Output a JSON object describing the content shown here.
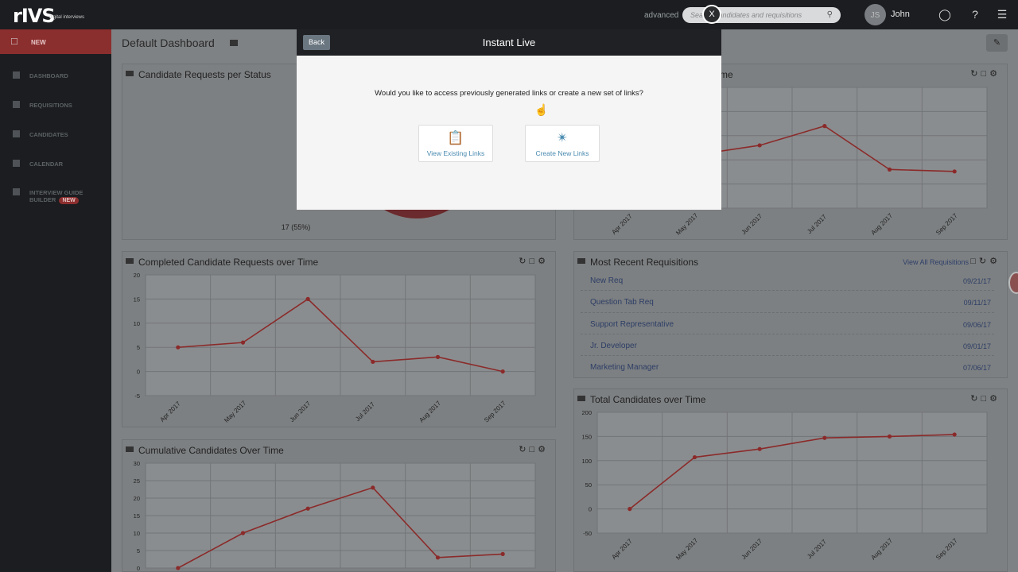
{
  "app": {
    "logo": "rIVS",
    "logo_sub": "digital interviews",
    "advanced_label": "advanced",
    "search_placeholder": "Search candidates and requisitions",
    "search_icon": "search-icon",
    "user_initials": "JS",
    "user_name": "John"
  },
  "sidebar": {
    "new_label": "NEW",
    "items": [
      {
        "label": "DASHBOARD",
        "icon": "bar-chart-icon"
      },
      {
        "label": "REQUISITIONS",
        "icon": "file-icon"
      },
      {
        "label": "CANDIDATES",
        "icon": "users-icon"
      },
      {
        "label": "CALENDAR",
        "icon": "calendar-icon"
      },
      {
        "label": "INTERVIEW GUIDE",
        "label2": "BUILDER",
        "badge": "NEW",
        "icon": "guide-icon"
      }
    ]
  },
  "dashboard": {
    "title": "Default Dashboard",
    "panels": {
      "status": {
        "title": "Candidate Requests per Status",
        "pie_label": "17 (55%)"
      },
      "right_top": {
        "title": "me"
      },
      "completed": {
        "title": "Completed Candidate Requests over Time"
      },
      "recent": {
        "title": "Most Recent Requisitions",
        "link": "View All Requisitions"
      },
      "cumulative": {
        "title": "Cumulative Candidates Over Time"
      },
      "total": {
        "title": "Total Candidates over Time"
      }
    },
    "requisitions": [
      {
        "name": "New Req",
        "date": "09/21/17"
      },
      {
        "name": "Question Tab Req",
        "date": "09/11/17"
      },
      {
        "name": "Support Representative",
        "date": "09/06/17"
      },
      {
        "name": "Jr. Developer",
        "date": "09/01/17"
      },
      {
        "name": "Marketing Manager",
        "date": "07/06/17"
      }
    ]
  },
  "modal": {
    "back_label": "Back",
    "title": "Instant Live",
    "question": "Would you like to access previously generated links or create a new set of links?",
    "options": [
      {
        "label": "View Existing Links",
        "icon": "clipboard-icon"
      },
      {
        "label": "Create New Links",
        "icon": "badge-check-icon"
      }
    ],
    "close_label": "X"
  },
  "chart_data": [
    {
      "id": "completed",
      "type": "line",
      "title": "Completed Candidate Requests over Time",
      "categories": [
        "Apr 2017",
        "May 2017",
        "Jun 2017",
        "Jul 2017",
        "Aug 2017",
        "Sep 2017"
      ],
      "values": [
        5,
        6,
        15,
        2,
        3,
        0
      ],
      "yticks": [
        20,
        15,
        10,
        5,
        0,
        -5
      ],
      "ylim": [
        -5,
        20
      ],
      "line_color": "#8b2a2a"
    },
    {
      "id": "cumulative",
      "type": "line",
      "title": "Cumulative Candidates Over Time",
      "categories": [
        "Apr 2017",
        "May 2017",
        "Jun 2017",
        "Jul 2017",
        "Aug 2017",
        "Sep 2017"
      ],
      "values": [
        0,
        10,
        17,
        23,
        3,
        4
      ],
      "yticks": [
        30,
        25,
        20,
        15,
        10,
        5,
        0
      ],
      "ylim": [
        0,
        30
      ],
      "line_color": "#8b2a2a"
    },
    {
      "id": "total",
      "type": "line",
      "title": "Total Candidates over Time",
      "categories": [
        "Apr 2017",
        "May 2017",
        "Jun 2017",
        "Jul 2017",
        "Aug 2017",
        "Sep 2017"
      ],
      "values": [
        0,
        107,
        124,
        147,
        150,
        154
      ],
      "yticks": [
        200,
        150,
        100,
        50,
        0,
        -50
      ],
      "ylim": [
        -50,
        200
      ],
      "line_color": "#8b2a2a"
    },
    {
      "id": "right_top",
      "type": "line",
      "title": "",
      "categories": [
        "Apr 2017",
        "May 2017",
        "Jun 2017",
        "Jul 2017",
        "Aug 2017",
        "Sep 2017"
      ],
      "values": [
        5,
        6,
        8,
        12,
        3,
        2.6
      ],
      "yticks": [],
      "ylim": [
        -5,
        20
      ],
      "line_color": "#8b2a2a"
    },
    {
      "id": "status",
      "type": "pie",
      "title": "Candidate Requests per Status",
      "slices": [
        {
          "label": "17 (55%)",
          "value": 55,
          "color": "#1e4a55"
        },
        {
          "label": "",
          "value": 45,
          "color": "#6b2a2d"
        }
      ]
    }
  ]
}
